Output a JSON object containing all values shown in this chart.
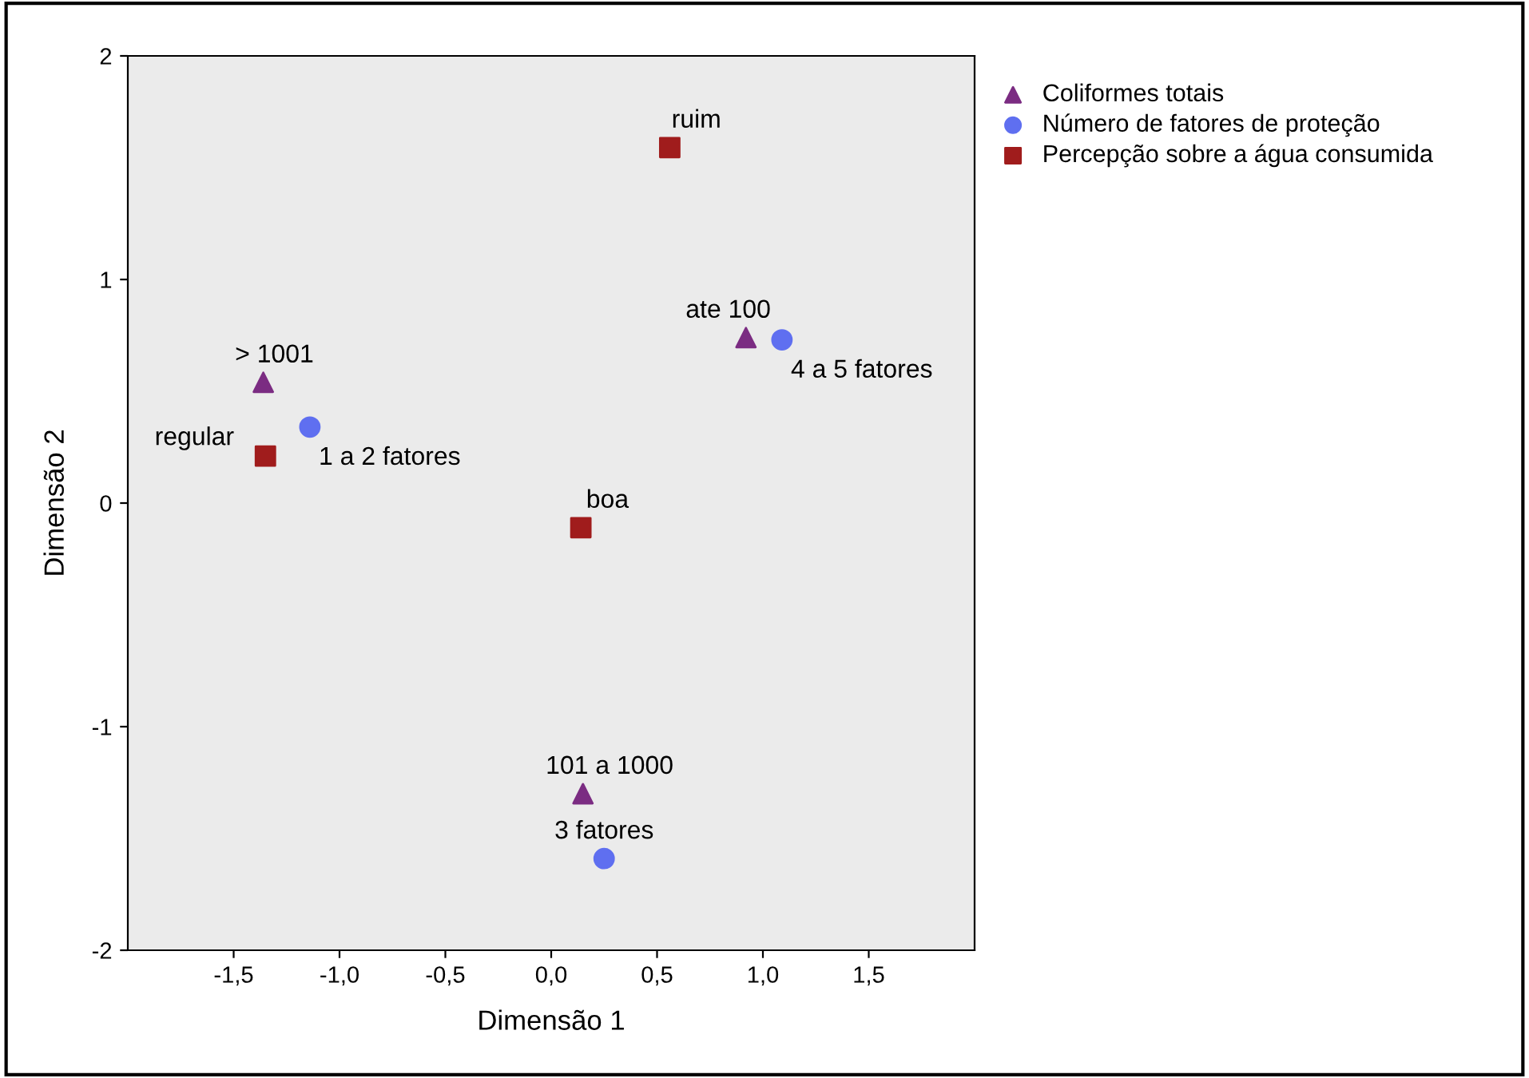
{
  "chart_data": {
    "type": "scatter",
    "xlabel": "Dimensão 1",
    "ylabel": "Dimensão 2",
    "xlim": [
      -2.0,
      2.0
    ],
    "ylim": [
      -2,
      2
    ],
    "xticks": [
      {
        "value": -1.5,
        "label": "-1,5"
      },
      {
        "value": -1.0,
        "label": "-1,0"
      },
      {
        "value": -0.5,
        "label": "-0,5"
      },
      {
        "value": 0.0,
        "label": "0,0"
      },
      {
        "value": 0.5,
        "label": "0,5"
      },
      {
        "value": 1.0,
        "label": "1,0"
      },
      {
        "value": 1.5,
        "label": "1,5"
      }
    ],
    "yticks": [
      -2,
      -1,
      0,
      1,
      2
    ],
    "grid": false,
    "legend": "top right",
    "series": [
      {
        "name": "Coliformes totais",
        "color": "#7b2c82",
        "marker": "triangle",
        "x": [
          -1.36,
          0.92,
          0.15
        ],
        "values": [
          0.54,
          0.74,
          -1.3
        ]
      },
      {
        "name": "Número de fatores de proteção",
        "color": "#5f6ff0",
        "marker": "circle",
        "x": [
          -1.14,
          1.09,
          0.25
        ],
        "values": [
          0.34,
          0.73,
          -1.59
        ]
      },
      {
        "name": "Percepção sobre a água consumida",
        "color": "#a01c1c",
        "marker": "square",
        "x": [
          0.56,
          -1.35,
          0.14
        ],
        "values": [
          1.59,
          0.21,
          -0.11
        ]
      }
    ],
    "annotations": [
      {
        "text": "> 1001",
        "x": -1.36,
        "y": 0.54
      },
      {
        "text": "ate 100",
        "x": 0.92,
        "y": 0.74
      },
      {
        "text": "101 a 1000",
        "x": 0.15,
        "y": -1.3
      },
      {
        "text": "1 a 2 fatores",
        "x": -1.14,
        "y": 0.34
      },
      {
        "text": "4 a 5 fatores",
        "x": 1.09,
        "y": 0.73
      },
      {
        "text": "3 fatores",
        "x": 0.25,
        "y": -1.59
      },
      {
        "text": "ruim",
        "x": 0.56,
        "y": 1.59
      },
      {
        "text": "regular",
        "x": -1.35,
        "y": 0.21
      },
      {
        "text": "boa",
        "x": 0.14,
        "y": -0.11
      }
    ]
  }
}
